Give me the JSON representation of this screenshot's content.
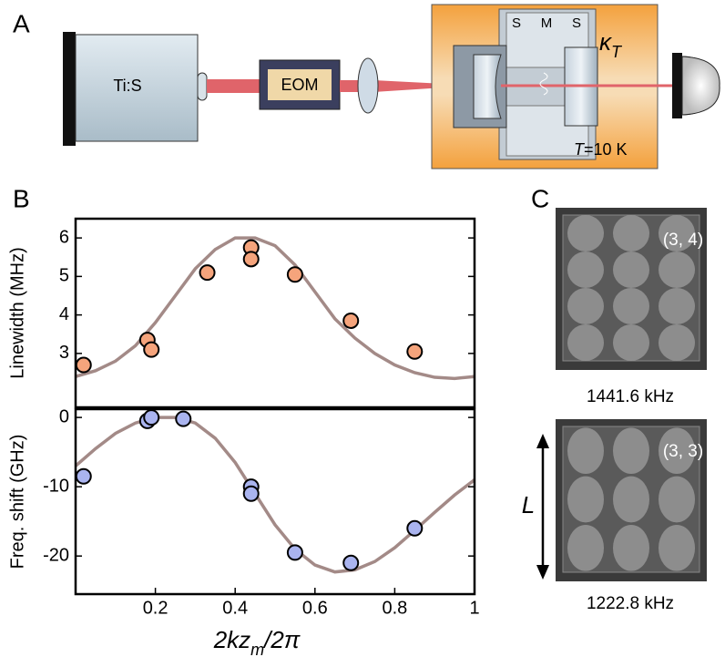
{
  "panels": {
    "a": {
      "label": "A",
      "laser": "Ti:S",
      "modulator": "EOM",
      "sample_labels": [
        "S",
        "M",
        "S"
      ],
      "loss": {
        "symbol": "κ",
        "sub": "T"
      },
      "temperature": {
        "symbol": "T",
        "text": "=10 K"
      }
    },
    "b": {
      "label": "B"
    },
    "c": {
      "label": "C",
      "images": [
        {
          "mode": "(3, 4)",
          "frequency": "1441.6 kHz"
        },
        {
          "mode": "(3, 3)",
          "frequency": "1222.8 kHz"
        }
      ],
      "scale_label": "L"
    }
  },
  "chart_data": [
    {
      "type": "scatter",
      "y_label": "Linewidth (MHz)",
      "xlim": [
        0,
        1
      ],
      "ylim": [
        1.6,
        6.5
      ],
      "yticks": [
        3,
        4,
        5,
        6
      ],
      "series": [
        {
          "style": "line",
          "color": "#a38a87",
          "x": [
            0,
            0.05,
            0.1,
            0.15,
            0.2,
            0.25,
            0.3,
            0.35,
            0.4,
            0.45,
            0.5,
            0.55,
            0.6,
            0.65,
            0.7,
            0.75,
            0.8,
            0.85,
            0.9,
            0.95,
            1
          ],
          "values": [
            2.4,
            2.55,
            2.8,
            3.2,
            3.8,
            4.5,
            5.2,
            5.7,
            6.0,
            6.0,
            5.8,
            5.3,
            4.6,
            3.9,
            3.4,
            3.0,
            2.7,
            2.5,
            2.38,
            2.35,
            2.4
          ]
        },
        {
          "style": "marker",
          "color": "#f5a47c",
          "x": [
            0.02,
            0.18,
            0.19,
            0.33,
            0.44,
            0.44,
            0.55,
            0.69,
            0.85
          ],
          "values": [
            2.7,
            3.35,
            3.1,
            5.1,
            5.75,
            5.45,
            5.05,
            3.85,
            3.05
          ]
        }
      ]
    },
    {
      "type": "scatter",
      "y_label": "Freq. shift (GHz)",
      "x_label": {
        "main": "2kz",
        "sub": "m",
        "tail": "/2π"
      },
      "xlim": [
        0,
        1
      ],
      "ylim": [
        -25.5,
        1.2
      ],
      "xticks": [
        0.2,
        0.4,
        0.6,
        0.8,
        1
      ],
      "yticks": [
        0,
        -10,
        -20
      ],
      "series": [
        {
          "style": "line",
          "color": "#a38a87",
          "x": [
            0,
            0.05,
            0.1,
            0.15,
            0.2,
            0.25,
            0.3,
            0.35,
            0.4,
            0.45,
            0.5,
            0.55,
            0.6,
            0.65,
            0.7,
            0.75,
            0.8,
            0.85,
            0.9,
            0.95,
            1
          ],
          "values": [
            -7,
            -4.5,
            -2.3,
            -0.8,
            0,
            0,
            -0.8,
            -3,
            -6.5,
            -11,
            -15.5,
            -19,
            -21.3,
            -22.3,
            -22,
            -20.8,
            -18.8,
            -16.3,
            -13.7,
            -11.2,
            -9
          ]
        },
        {
          "style": "marker",
          "color": "#aab4ef",
          "x": [
            0.02,
            0.18,
            0.19,
            0.27,
            0.44,
            0.44,
            0.55,
            0.69,
            0.85
          ],
          "values": [
            -8.5,
            -0.5,
            0,
            -0.2,
            -10,
            -11,
            -19.5,
            -21,
            -16
          ]
        }
      ]
    }
  ]
}
